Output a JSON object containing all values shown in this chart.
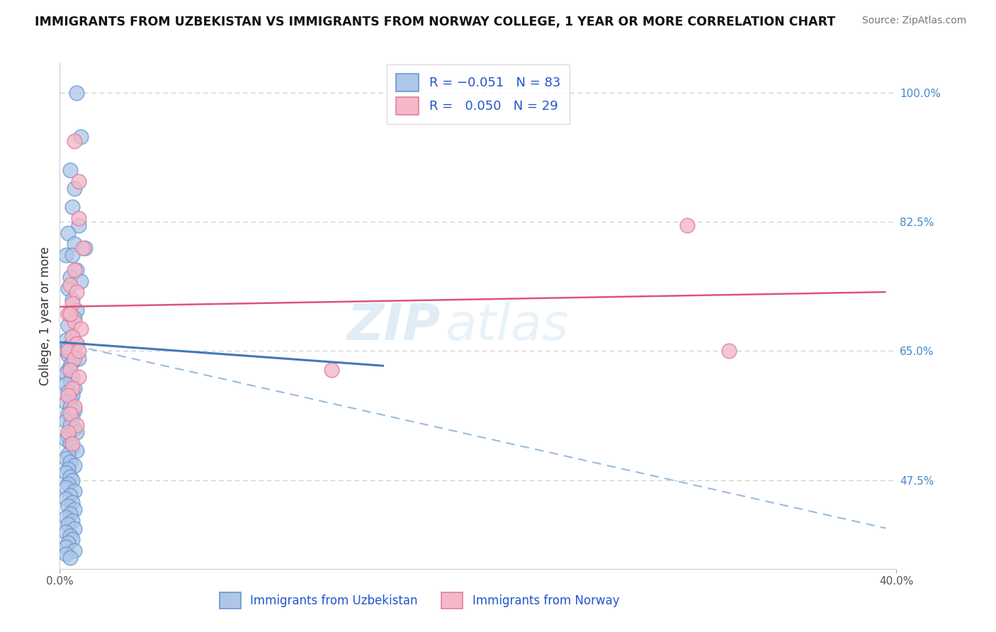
{
  "title": "IMMIGRANTS FROM UZBEKISTAN VS IMMIGRANTS FROM NORWAY COLLEGE, 1 YEAR OR MORE CORRELATION CHART",
  "source": "Source: ZipAtlas.com",
  "ylabel": "College, 1 year or more",
  "xlim": [
    0.0,
    0.4
  ],
  "ylim": [
    0.355,
    1.04
  ],
  "right_ytick_values": [
    1.0,
    0.825,
    0.65,
    0.475
  ],
  "right_ytick_labels": [
    "100.0%",
    "82.5%",
    "65.0%",
    "47.5%"
  ],
  "bottom_right_xlabel": "40.0%",
  "bottom_left_xlabel": "0.0%",
  "blue_color": "#aec6e8",
  "blue_edge": "#6699cc",
  "pink_color": "#f4b8c8",
  "pink_edge": "#e080a0",
  "blue_line_color": "#4477bb",
  "pink_line_color": "#dd5577",
  "dash_line_color": "#99bbdd",
  "watermark_zip": "ZIP",
  "watermark_atlas": "atlas",
  "blue_trendline_x": [
    0.0,
    0.155
  ],
  "blue_trendline_y": [
    0.662,
    0.63
  ],
  "pink_trendline_x": [
    0.0,
    0.395
  ],
  "pink_trendline_y": [
    0.71,
    0.73
  ],
  "dash_trendline_x": [
    0.0,
    0.395
  ],
  "dash_trendline_y": [
    0.662,
    0.41
  ],
  "blue_pts_x": [
    0.008,
    0.01,
    0.005,
    0.007,
    0.006,
    0.009,
    0.004,
    0.007,
    0.012,
    0.003,
    0.006,
    0.008,
    0.005,
    0.01,
    0.004,
    0.006,
    0.008,
    0.005,
    0.007,
    0.004,
    0.006,
    0.003,
    0.008,
    0.005,
    0.003,
    0.007,
    0.004,
    0.009,
    0.006,
    0.005,
    0.004,
    0.003,
    0.006,
    0.005,
    0.003,
    0.007,
    0.004,
    0.006,
    0.005,
    0.003,
    0.005,
    0.007,
    0.004,
    0.006,
    0.003,
    0.005,
    0.007,
    0.008,
    0.004,
    0.003,
    0.005,
    0.006,
    0.008,
    0.004,
    0.003,
    0.005,
    0.007,
    0.004,
    0.003,
    0.005,
    0.006,
    0.004,
    0.003,
    0.007,
    0.005,
    0.003,
    0.006,
    0.004,
    0.007,
    0.005,
    0.003,
    0.006,
    0.004,
    0.007,
    0.003,
    0.005,
    0.006,
    0.004,
    0.003,
    0.007,
    0.003,
    0.005,
    0.004
  ],
  "blue_pts_y": [
    1.0,
    0.94,
    0.895,
    0.87,
    0.845,
    0.82,
    0.81,
    0.795,
    0.79,
    0.78,
    0.78,
    0.76,
    0.75,
    0.745,
    0.735,
    0.72,
    0.705,
    0.7,
    0.695,
    0.685,
    0.67,
    0.665,
    0.66,
    0.655,
    0.65,
    0.645,
    0.645,
    0.64,
    0.635,
    0.63,
    0.625,
    0.62,
    0.615,
    0.61,
    0.605,
    0.6,
    0.595,
    0.59,
    0.585,
    0.58,
    0.575,
    0.57,
    0.565,
    0.56,
    0.555,
    0.55,
    0.545,
    0.54,
    0.535,
    0.53,
    0.525,
    0.52,
    0.515,
    0.51,
    0.505,
    0.5,
    0.495,
    0.49,
    0.485,
    0.48,
    0.475,
    0.47,
    0.465,
    0.46,
    0.455,
    0.45,
    0.445,
    0.44,
    0.435,
    0.43,
    0.425,
    0.42,
    0.415,
    0.41,
    0.405,
    0.4,
    0.395,
    0.39,
    0.385,
    0.38,
    0.375,
    0.37,
    0.655
  ],
  "pink_pts_x": [
    0.007,
    0.009,
    0.009,
    0.011,
    0.007,
    0.005,
    0.008,
    0.006,
    0.004,
    0.007,
    0.01,
    0.006,
    0.008,
    0.004,
    0.007,
    0.005,
    0.009,
    0.006,
    0.004,
    0.007,
    0.005,
    0.008,
    0.004,
    0.006,
    0.009,
    0.005,
    0.13,
    0.3,
    0.32
  ],
  "pink_pts_y": [
    0.935,
    0.88,
    0.83,
    0.79,
    0.76,
    0.74,
    0.73,
    0.715,
    0.7,
    0.69,
    0.68,
    0.67,
    0.66,
    0.65,
    0.64,
    0.625,
    0.615,
    0.6,
    0.59,
    0.575,
    0.565,
    0.55,
    0.54,
    0.525,
    0.65,
    0.7,
    0.625,
    0.82,
    0.65
  ]
}
